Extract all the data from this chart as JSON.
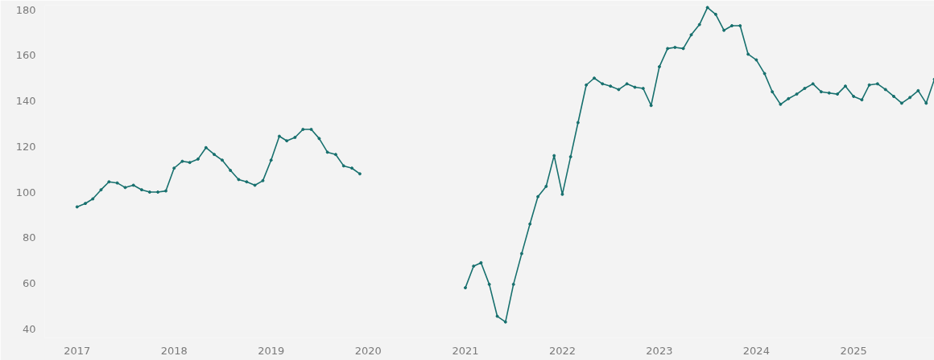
{
  "chart_data": {
    "type": "line",
    "x": [
      "2017-01",
      "2017-02",
      "2017-03",
      "2017-04",
      "2017-05",
      "2017-06",
      "2017-07",
      "2017-08",
      "2017-09",
      "2017-10",
      "2017-11",
      "2017-12",
      "2018-01",
      "2018-02",
      "2018-03",
      "2018-04",
      "2018-05",
      "2018-06",
      "2018-07",
      "2018-08",
      "2018-09",
      "2018-10",
      "2018-11",
      "2018-12",
      "2019-01",
      "2019-02",
      "2019-03",
      "2019-04",
      "2019-05",
      "2019-06",
      "2019-07",
      "2019-08",
      "2019-09",
      "2019-10",
      "2019-11",
      "2019-12",
      "2020-01",
      "2020-02",
      "2020-03",
      "2020-04",
      "2020-05",
      "2020-06",
      "2020-07",
      "2020-08",
      "2020-09",
      "2020-10",
      "2020-11",
      "2020-12",
      "2021-01",
      "2021-02",
      "2021-03",
      "2021-04",
      "2021-05",
      "2021-06",
      "2021-07",
      "2021-08",
      "2021-09",
      "2021-10",
      "2021-11",
      "2021-12",
      "2022-01",
      "2022-02",
      "2022-03",
      "2022-04",
      "2022-05",
      "2022-06",
      "2022-07",
      "2022-08",
      "2022-09",
      "2022-10",
      "2022-11",
      "2022-12",
      "2023-01",
      "2023-02",
      "2023-03",
      "2023-04",
      "2023-05",
      "2023-06",
      "2023-07",
      "2023-08",
      "2023-09",
      "2023-10",
      "2023-11",
      "2023-12",
      "2024-01",
      "2024-02",
      "2024-03",
      "2024-04",
      "2024-05",
      "2024-06",
      "2024-07",
      "2024-08",
      "2024-09",
      "2024-10",
      "2024-11",
      "2024-12",
      "2025-01",
      "2025-02",
      "2025-03",
      "2025-04",
      "2025-05",
      "2025-06",
      "2025-07",
      "2025-08",
      "2025-09",
      "2025-10",
      "2025-11"
    ],
    "series": [
      {
        "color": "#17706e",
        "values": [
          93.5,
          95,
          97,
          101,
          104.5,
          104,
          102,
          103,
          101,
          100,
          100,
          100.5,
          110.5,
          113.5,
          113,
          114.5,
          119.5,
          116.5,
          114,
          109.5,
          105.5,
          104.5,
          103,
          105,
          114,
          124.5,
          122.5,
          124,
          127.5,
          127.5,
          123.5,
          117.5,
          116.5,
          111.5,
          110.5,
          108,
          null,
          null,
          null,
          null,
          null,
          null,
          null,
          null,
          null,
          null,
          null,
          null,
          58,
          67.5,
          69,
          59.5,
          45.5,
          43,
          59.5,
          73,
          86,
          98,
          102.5,
          116,
          99,
          115.5,
          130.5,
          147,
          150,
          147.5,
          146.5,
          145,
          147.5,
          146,
          145.5,
          138,
          155,
          163,
          163.5,
          163,
          169,
          173.5,
          181,
          178,
          171,
          173,
          173,
          160.5,
          158,
          152,
          144,
          138.5,
          141,
          143,
          145.5,
          147.5,
          144,
          143.5,
          143,
          146.5,
          142,
          140.5,
          147,
          147.5,
          145,
          142,
          139,
          141.5,
          144.5,
          139,
          149.5
        ]
      }
    ],
    "xlim": [
      "2016-09",
      "2025-11"
    ],
    "xticks": [
      "2017",
      "2018",
      "2019",
      "2020",
      "2021",
      "2022",
      "2023",
      "2024",
      "2025"
    ],
    "ylim": [
      36,
      182
    ],
    "yticks": [
      40,
      60,
      80,
      100,
      120,
      140,
      160,
      180
    ],
    "grid": false,
    "marker": "circle",
    "line_style": "solid"
  }
}
